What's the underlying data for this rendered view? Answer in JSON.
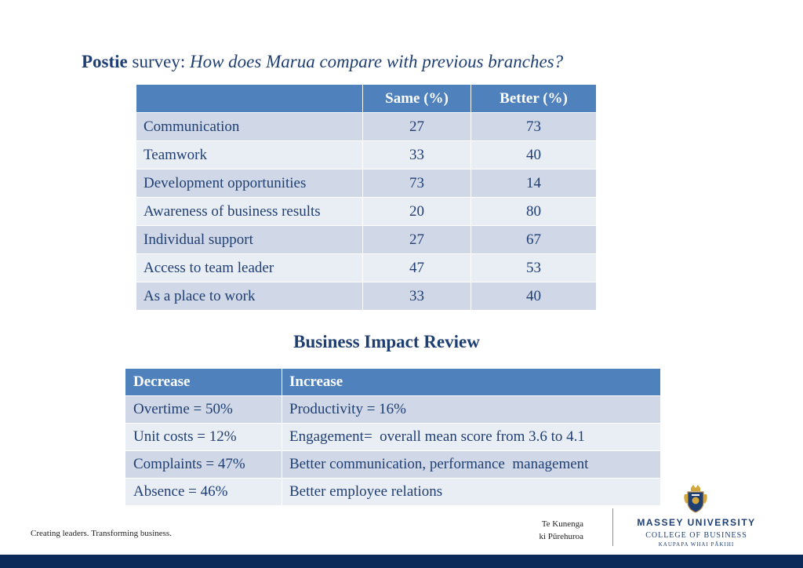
{
  "title": {
    "bold": "Postie",
    "plain": " survey: ",
    "italic": "How does Marua compare with previous branches?"
  },
  "survey_table": {
    "headers": [
      "",
      "Same (%)",
      "Better (%)"
    ],
    "rows": [
      [
        "Communication",
        "27",
        "73"
      ],
      [
        "Teamwork",
        "33",
        "40"
      ],
      [
        "Development opportunities",
        "73",
        "14"
      ],
      [
        "Awareness of business results",
        "20",
        "80"
      ],
      [
        "Individual support",
        "27",
        "67"
      ],
      [
        "Access to team leader",
        "47",
        "53"
      ],
      [
        "As a place to work",
        "33",
        "40"
      ]
    ]
  },
  "impact_title": "Business Impact Review",
  "impact_table": {
    "headers": [
      "Decrease",
      "Increase"
    ],
    "rows": [
      [
        "Overtime = 50%",
        "Productivity = 16%"
      ],
      [
        "Unit costs = 12%",
        "Engagement=  overall mean score from 3.6 to 4.1"
      ],
      [
        "Complaints = 47%",
        "Better communication, performance  management"
      ],
      [
        "Absence = 46%",
        "Better employee relations"
      ]
    ]
  },
  "footer": {
    "tagline": "Creating leaders. Transforming business.",
    "maori_line1": "Te Kunenga",
    "maori_line2": "ki Pūrehuroa",
    "university": "MASSEY UNIVERSITY",
    "college": "COLLEGE OF BUSINESS",
    "motto": "KAUPAPA WHAI PĀKIHI",
    "crest_icon": "university-crest-icon"
  },
  "colors": {
    "header_blue": "#4f81bd",
    "row_light": "#e9edf4",
    "row_dark": "#d0d8e8",
    "text_navy": "#1f3f73",
    "bar_navy": "#0b2a5a"
  }
}
